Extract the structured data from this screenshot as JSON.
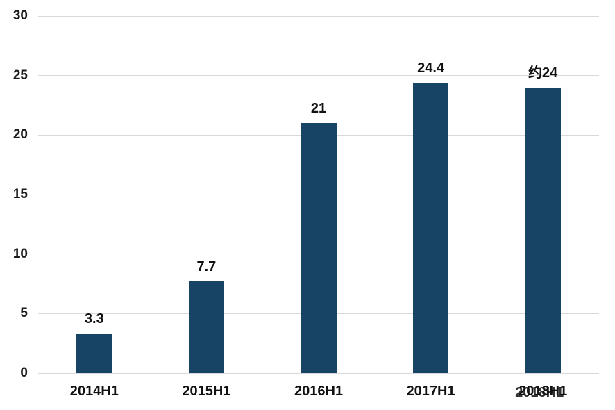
{
  "chart_data": {
    "type": "bar",
    "categories": [
      "2014H1",
      "2015H1",
      "2016H1",
      "2017H1",
      "2018H1"
    ],
    "values": [
      3.3,
      7.7,
      21,
      24.4,
      24
    ],
    "value_labels": [
      "3.3",
      "7.7",
      "21",
      "24.4",
      "约24"
    ],
    "title": "",
    "xlabel": "",
    "ylabel": "",
    "ylim": [
      0,
      30
    ],
    "yticks": [
      0,
      5,
      10,
      15,
      20,
      25,
      30
    ],
    "grid": "horizontal",
    "legend": "none",
    "bar_color": "#174364",
    "gridline_color": "#d9d9d9",
    "text_color": "#1a1a1a",
    "background": "#ffffff",
    "watermark_duplicate_category_index": 4
  }
}
